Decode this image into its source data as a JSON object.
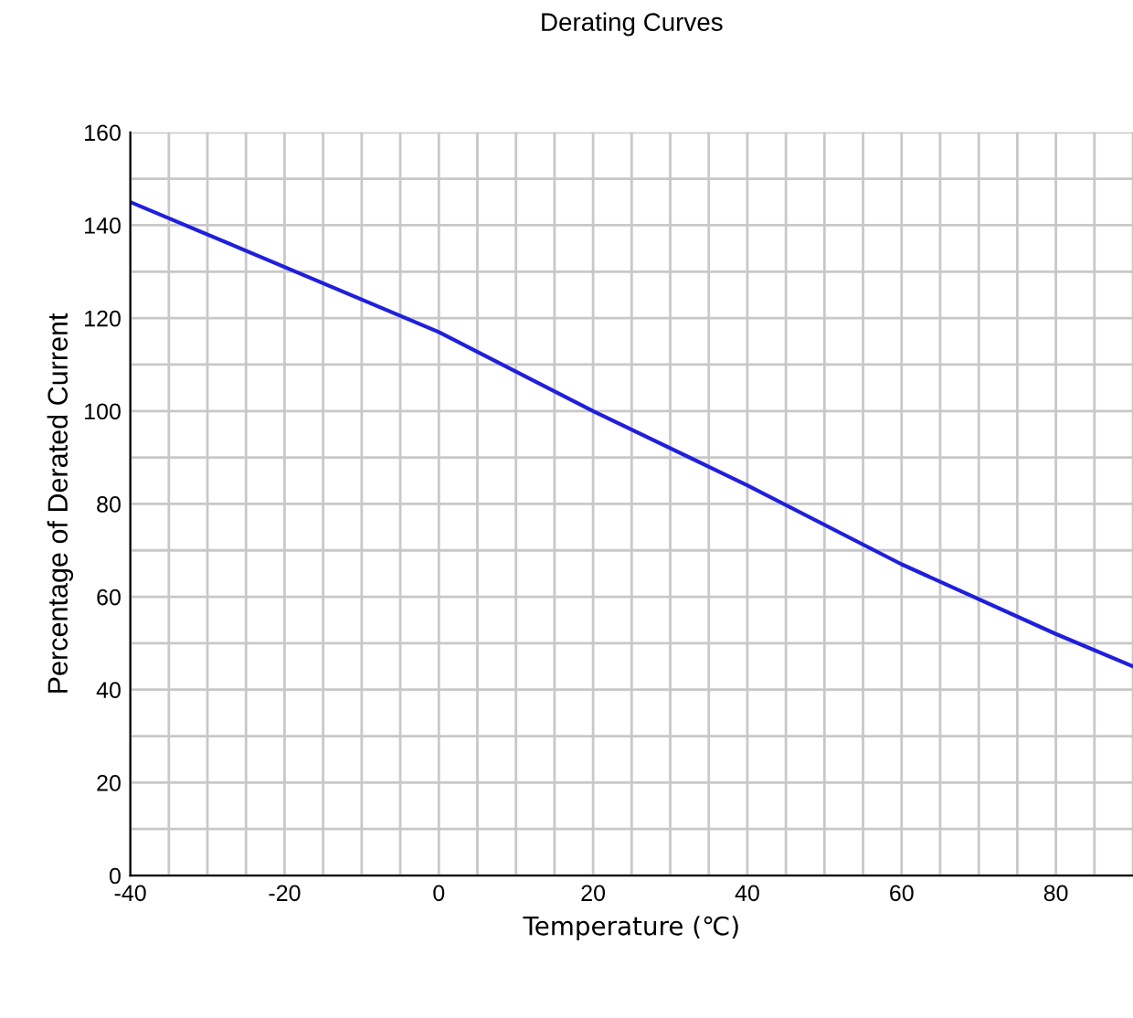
{
  "chart_data": {
    "type": "line",
    "title": "Derating Curves",
    "xlabel": "Temperature (℃)",
    "ylabel": "Percentage of Derated Current",
    "x": [
      -40,
      0,
      20,
      40,
      60,
      80,
      90
    ],
    "series": [
      {
        "color": "#1f1fe0",
        "values": [
          145,
          117,
          100,
          84,
          67,
          52,
          45
        ]
      }
    ],
    "xlim": [
      -40,
      90
    ],
    "xticks": [
      -40,
      {
        "value": -35,
        "label": null
      },
      {
        "value": -30,
        "label": null
      },
      {
        "value": -25,
        "label": null
      },
      -20,
      {
        "value": -15,
        "label": null
      },
      {
        "value": -10,
        "label": null
      },
      {
        "value": -5,
        "label": null
      },
      0,
      {
        "value": 5,
        "label": null
      },
      {
        "value": 10,
        "label": null
      },
      {
        "value": 15,
        "label": null
      },
      20,
      {
        "value": 25,
        "label": null
      },
      {
        "value": 30,
        "label": null
      },
      {
        "value": 35,
        "label": null
      },
      40,
      {
        "value": 45,
        "label": null
      },
      {
        "value": 50,
        "label": null
      },
      {
        "value": 55,
        "label": null
      },
      60,
      {
        "value": 65,
        "label": null
      },
      {
        "value": 70,
        "label": null
      },
      {
        "value": 75,
        "label": null
      },
      80,
      {
        "value": 85,
        "label": null
      },
      {
        "value": 90,
        "label": null
      }
    ],
    "ylim": [
      0,
      160
    ],
    "yticks": [
      0,
      {
        "value": 10,
        "label": null
      },
      20,
      {
        "value": 30,
        "label": null
      },
      40,
      {
        "value": 50,
        "label": null
      },
      60,
      {
        "value": 70,
        "label": null
      },
      80,
      {
        "value": 90,
        "label": null
      },
      100,
      {
        "value": 110,
        "label": null
      },
      120,
      {
        "value": 130,
        "label": null
      },
      140,
      {
        "value": 150,
        "label": null
      },
      160
    ],
    "grid": true,
    "line_style": "solid",
    "marker": "none"
  }
}
